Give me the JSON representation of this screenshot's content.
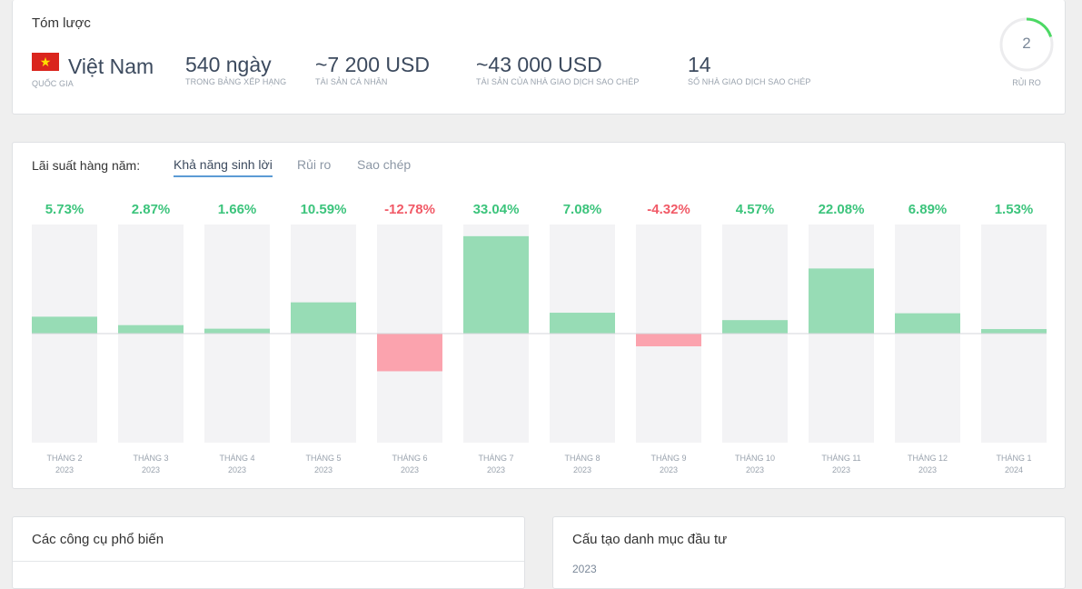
{
  "summary": {
    "title": "Tóm lược",
    "country": {
      "value": "Việt Nam",
      "label": "QUỐC GIA",
      "flag_icon": "vietnam-flag-icon"
    },
    "days": {
      "value": "540 ngày",
      "label": "TRONG BẢNG XẾP HẠNG"
    },
    "personal_assets": {
      "value": "~7 200 USD",
      "label": "TÀI SẢN CÁ NHÂN"
    },
    "copier_assets": {
      "value": "~43 000 USD",
      "label": "TÀI SẢN CỦA NHÀ GIAO DỊCH SAO CHÉP"
    },
    "copiers": {
      "value": "14",
      "label": "SỐ NHÀ GIAO DỊCH SAO CHÉP"
    },
    "risk": {
      "value": "2",
      "label": "RỦI RO",
      "max": 10,
      "color": "#4cd964"
    }
  },
  "returns": {
    "label": "Lãi suất hàng năm:",
    "tabs": [
      {
        "label": "Khả năng sinh lời",
        "active": true
      },
      {
        "label": "Rủi ro",
        "active": false
      },
      {
        "label": "Sao chép",
        "active": false
      }
    ]
  },
  "chart_data": {
    "type": "bar",
    "categories": [
      [
        "THÁNG 2",
        "2023"
      ],
      [
        "THÁNG 3",
        "2023"
      ],
      [
        "THÁNG 4",
        "2023"
      ],
      [
        "THÁNG 5",
        "2023"
      ],
      [
        "THÁNG 6",
        "2023"
      ],
      [
        "THÁNG 7",
        "2023"
      ],
      [
        "THÁNG 8",
        "2023"
      ],
      [
        "THÁNG 9",
        "2023"
      ],
      [
        "THÁNG 10",
        "2023"
      ],
      [
        "THÁNG 11",
        "2023"
      ],
      [
        "THÁNG 12",
        "2023"
      ],
      [
        "THÁNG 1",
        "2024"
      ]
    ],
    "values": [
      5.73,
      2.87,
      1.66,
      10.59,
      -12.78,
      33.04,
      7.08,
      -4.32,
      4.57,
      22.08,
      6.89,
      1.53
    ],
    "labels": [
      "5.73%",
      "2.87%",
      "1.66%",
      "10.59%",
      "-12.78%",
      "33.04%",
      "7.08%",
      "-4.32%",
      "4.57%",
      "22.08%",
      "6.89%",
      "1.53%"
    ],
    "ylim": [
      -37,
      37
    ],
    "colors": {
      "positive_bar": "#97dcb5",
      "negative_bar": "#fba3ae",
      "positive_text": "#3cc47c",
      "negative_text": "#f15a67",
      "track": "#f3f3f5"
    }
  },
  "tools": {
    "title": "Các công cụ phổ biến"
  },
  "portfolio": {
    "title": "Cấu tạo danh mục đầu tư",
    "year": "2023"
  }
}
